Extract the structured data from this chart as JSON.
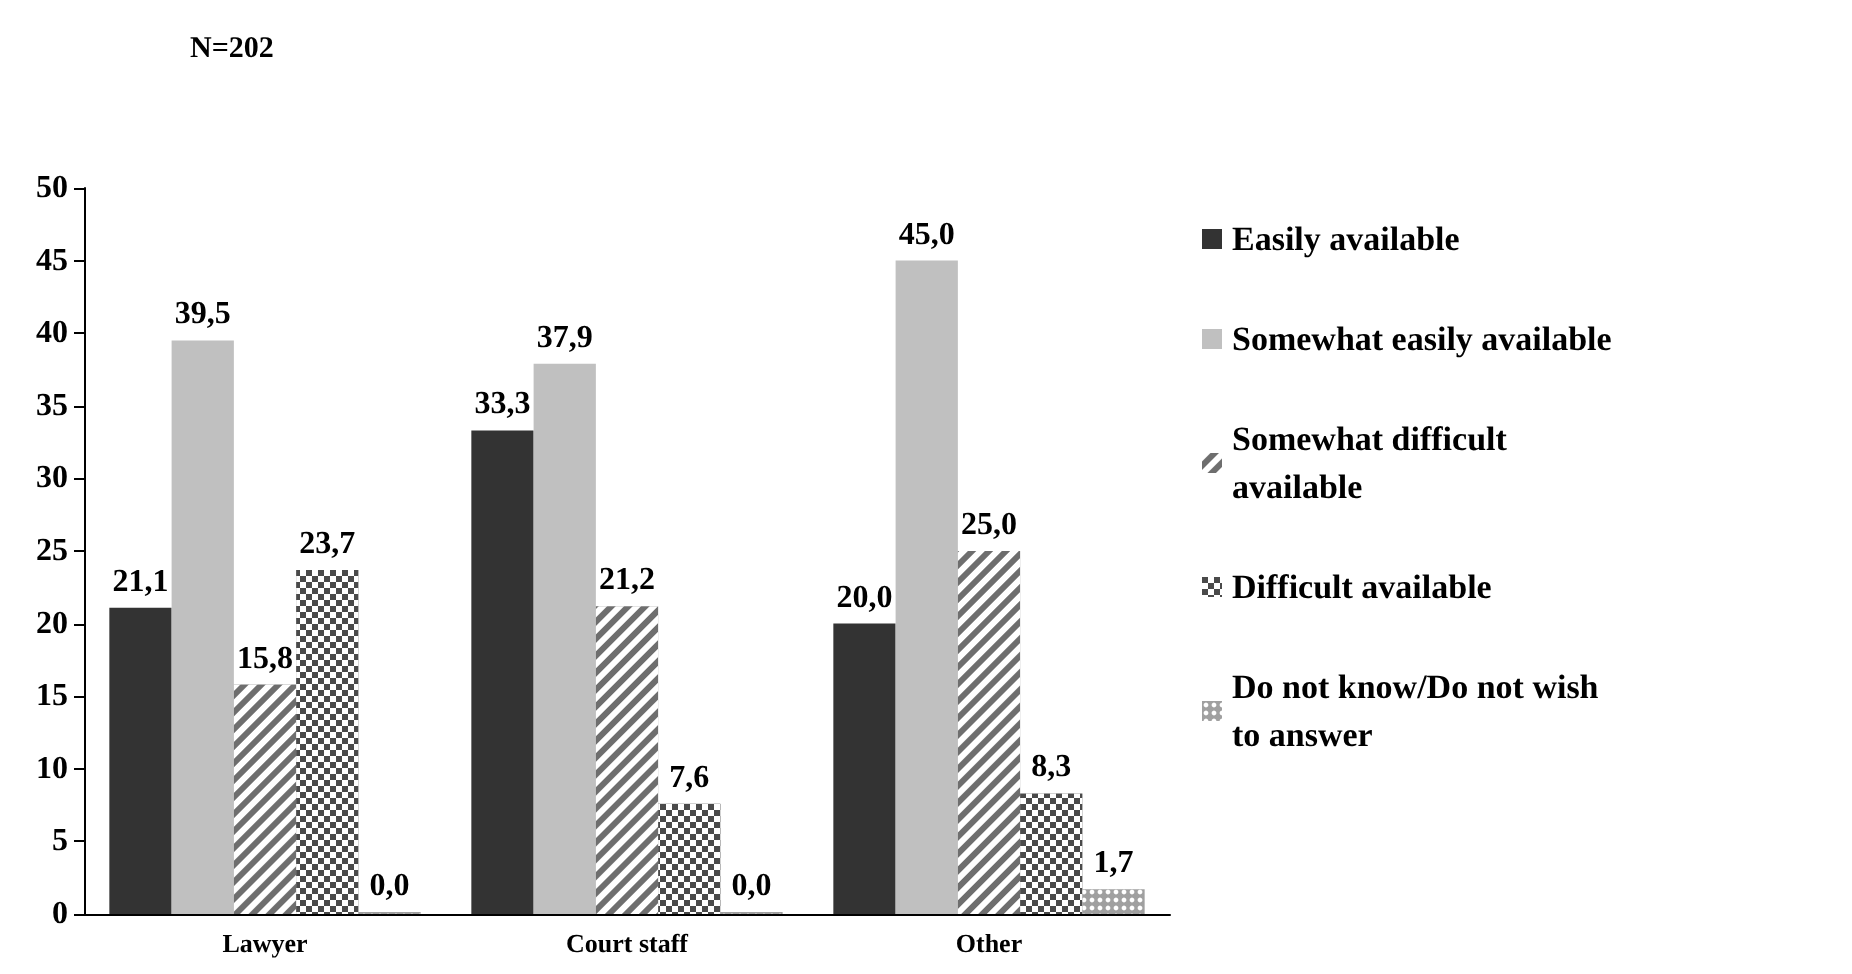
{
  "chart_data": {
    "type": "bar",
    "title": "N=202",
    "categories": [
      "Lawyer",
      "Court staff",
      "Other"
    ],
    "series": [
      {
        "name": "Easily available",
        "color": "#333333",
        "values": [
          21.1,
          33.3,
          20.0
        ],
        "value_labels": [
          "21,1",
          "33,3",
          "20,0"
        ]
      },
      {
        "name": "Somewhat easily available",
        "color": "#c0c0c0",
        "values": [
          39.5,
          37.9,
          45.0
        ],
        "value_labels": [
          "39,5",
          "37,9",
          "45,0"
        ]
      },
      {
        "name": "Somewhat difficult available",
        "color": "#6e6e6e",
        "values": [
          15.8,
          21.2,
          25.0
        ],
        "value_labels": [
          "15,8",
          "21,2",
          "25,0"
        ]
      },
      {
        "name": "Difficult available",
        "color": "#4a4a4a",
        "values": [
          23.7,
          7.6,
          8.3
        ],
        "value_labels": [
          "23,7",
          "7,6",
          "8,3"
        ]
      },
      {
        "name": "Do not know/Do not wish to answer",
        "color": "#a0a0a0",
        "values": [
          0.0,
          0.0,
          1.7
        ],
        "value_labels": [
          "0,0",
          "0,0",
          "1,7"
        ]
      }
    ],
    "ylim": [
      0,
      50
    ],
    "yticks": [
      0,
      5,
      10,
      15,
      20,
      25,
      30,
      35,
      40,
      45,
      50
    ],
    "legend": "right",
    "grid": false
  }
}
